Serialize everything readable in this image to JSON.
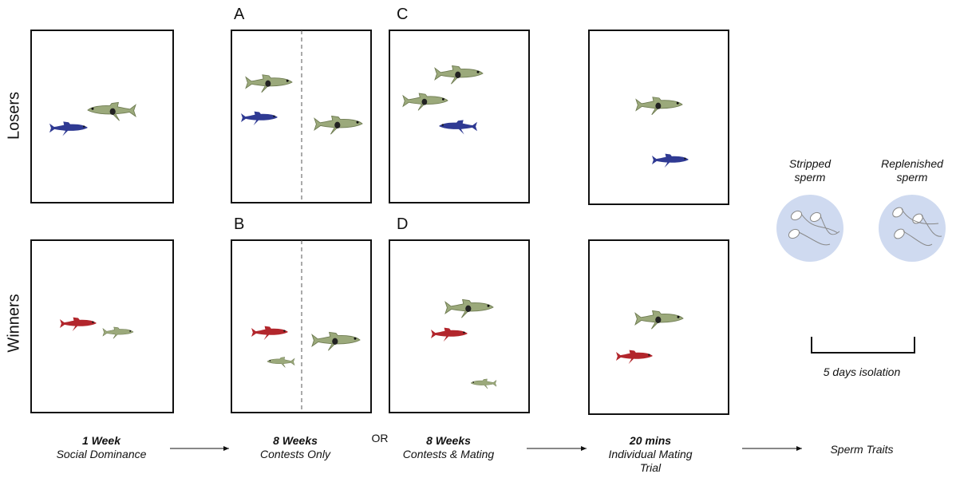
{
  "rows": [
    "Losers",
    "Winners"
  ],
  "panels": [
    "A",
    "B",
    "C",
    "D"
  ],
  "stages": [
    {
      "title": "1 Week",
      "subtitle": "Social Dominance"
    },
    {
      "title": "8 Weeks",
      "subtitle": "Contests Only"
    },
    {
      "title": "8 Weeks",
      "subtitle": "Contests & Mating"
    },
    {
      "title": "20 mins",
      "subtitle": "Individual Mating Trial"
    }
  ],
  "or": "OR",
  "outcome": "Sperm Traits",
  "sperm": [
    "Stripped sperm",
    "Replenished sperm"
  ],
  "isolation": "5 days isolation"
}
